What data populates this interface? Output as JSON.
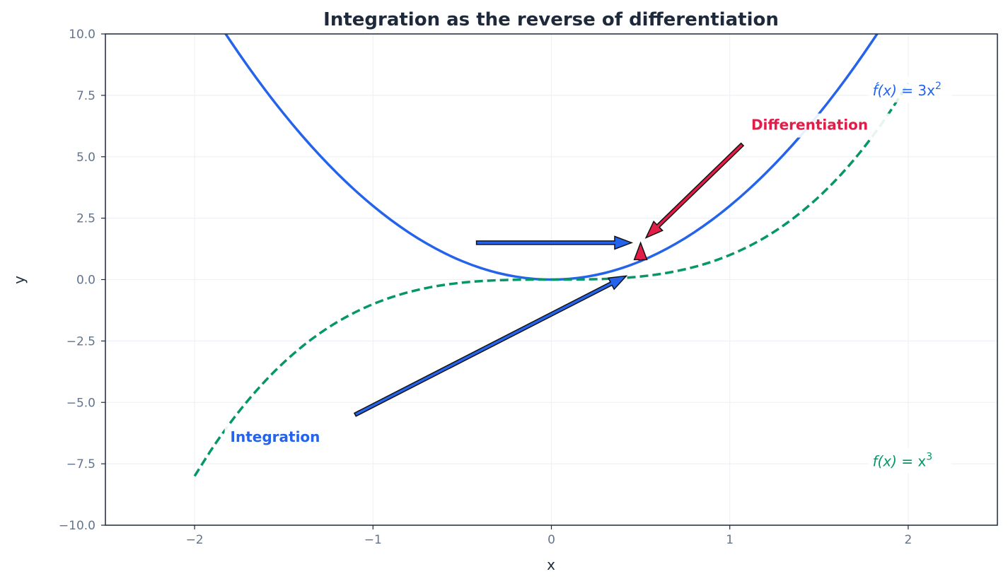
{
  "chart_data": {
    "type": "line",
    "title": "Integration as the reverse of differentiation",
    "xlabel": "x",
    "ylabel": "y",
    "xlim": [
      -2.5,
      2.5
    ],
    "ylim": [
      -10,
      10
    ],
    "grid": true,
    "x_ticks": [
      -2,
      -1,
      0,
      1,
      2
    ],
    "x_tick_labels": [
      "−2",
      "−1",
      "0",
      "1",
      "2"
    ],
    "y_ticks": [
      -10,
      -7.5,
      -5,
      -2.5,
      0,
      2.5,
      5,
      7.5,
      10
    ],
    "y_tick_labels": [
      "−10.0",
      "−7.5",
      "−5.0",
      "−2.5",
      "0.0",
      "2.5",
      "5.0",
      "7.5",
      "10.0"
    ],
    "x": [
      -2,
      -1.9,
      -1.8,
      -1.7,
      -1.6,
      -1.5,
      -1.4,
      -1.3,
      -1.2,
      -1.1,
      -1,
      -0.9,
      -0.8,
      -0.7,
      -0.6,
      -0.5,
      -0.4,
      -0.3,
      -0.2,
      -0.1,
      0,
      0.1,
      0.2,
      0.3,
      0.4,
      0.5,
      0.6,
      0.7,
      0.8,
      0.9,
      1,
      1.1,
      1.2,
      1.3,
      1.4,
      1.5,
      1.6,
      1.7,
      1.8,
      1.9,
      2
    ],
    "series": [
      {
        "name": "f'(x) = 3x²",
        "label_parts": {
          "f": "f́(x)",
          "eq": " = 3x",
          "sup": "2"
        },
        "color": "#2563eb",
        "style": "solid",
        "values": [
          12,
          10.83,
          9.72,
          8.67,
          7.68,
          6.75,
          5.88,
          5.07,
          4.32,
          3.63,
          3,
          2.43,
          1.92,
          1.47,
          1.08,
          0.75,
          0.48,
          0.27,
          0.12,
          0.03,
          0,
          0.03,
          0.12,
          0.27,
          0.48,
          0.75,
          1.08,
          1.47,
          1.92,
          2.43,
          3,
          3.63,
          4.32,
          5.07,
          5.88,
          6.75,
          7.68,
          8.67,
          9.72,
          10.83,
          12
        ],
        "label_at": [
          1.8,
          7.7
        ]
      },
      {
        "name": "f(x) = x³",
        "label_parts": {
          "f": "f(x)",
          "eq": " = x",
          "sup": "3"
        },
        "color": "#059669",
        "style": "dashed",
        "values": [
          -8,
          -6.859,
          -5.832,
          -4.913,
          -4.096,
          -3.375,
          -2.744,
          -2.197,
          -1.728,
          -1.331,
          -1,
          -0.729,
          -0.512,
          -0.343,
          -0.216,
          -0.125,
          -0.064,
          -0.027,
          -0.008,
          -0.001,
          0,
          0.001,
          0.008,
          0.027,
          0.064,
          0.125,
          0.216,
          0.343,
          0.512,
          0.729,
          1,
          1.331,
          1.728,
          2.197,
          2.744,
          3.375,
          4.096,
          4.913,
          5.832,
          6.859,
          8
        ],
        "label_at": [
          1.8,
          -7.4
        ]
      }
    ],
    "annotations": [
      {
        "text": "Differentiation",
        "color": "#e11d48",
        "text_at": [
          1.12,
          6.3
        ],
        "arrow_from": [
          1.07,
          5.5
        ],
        "arrow_to": [
          0.53,
          1.7
        ]
      },
      {
        "text": "Integration",
        "color": "#2563eb",
        "text_at": [
          -1.8,
          -6.4
        ],
        "arrow_from": [
          -1.1,
          -5.5
        ],
        "arrow_to": [
          0.42,
          0.15
        ]
      }
    ],
    "extra_arrows": [
      {
        "color": "#2563eb",
        "from": [
          -0.42,
          1.5
        ],
        "to": [
          0.45,
          1.5
        ]
      },
      {
        "color": "#e11d48",
        "from": [
          0.5,
          0.8
        ],
        "to": [
          0.5,
          1.5
        ]
      }
    ]
  }
}
